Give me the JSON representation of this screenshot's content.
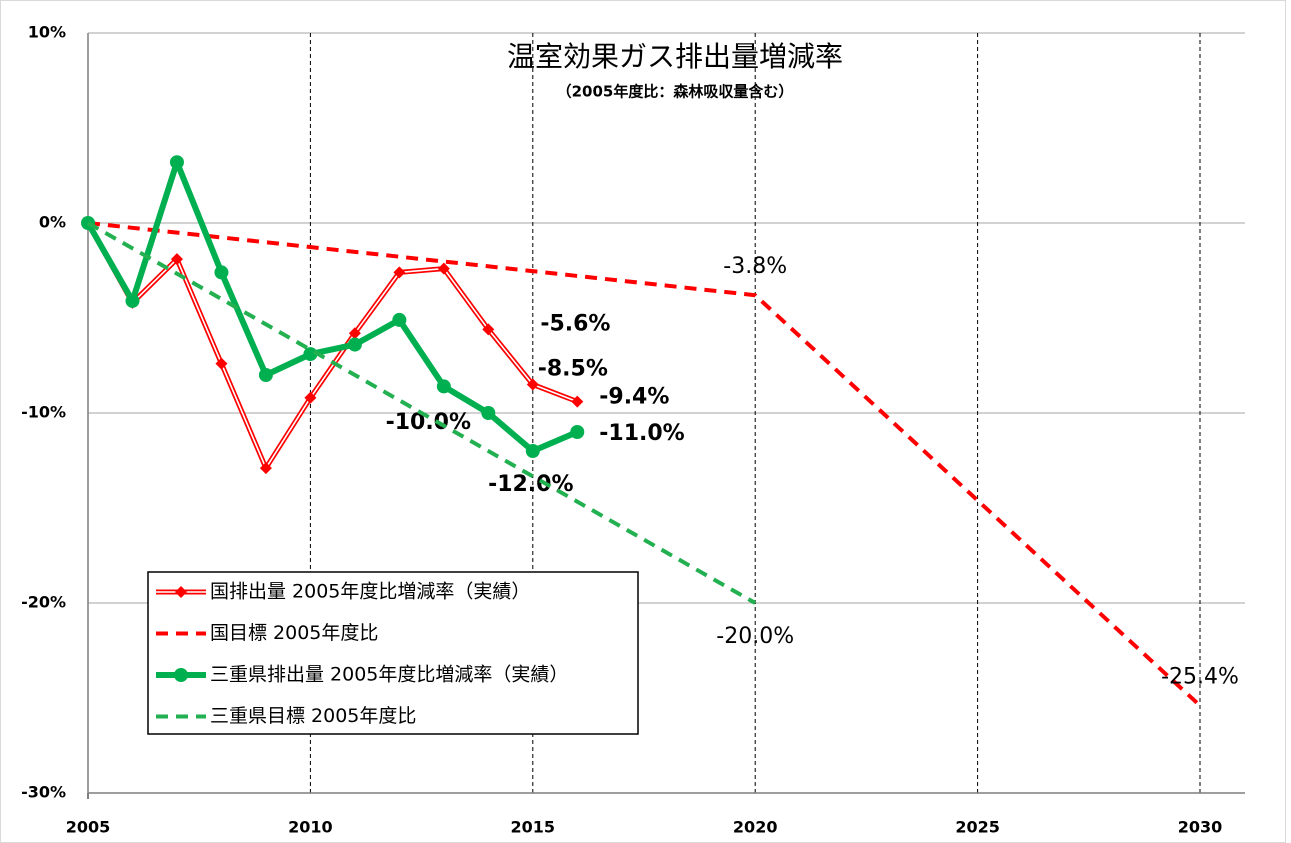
{
  "chart_data": {
    "type": "line",
    "title": "温室効果ガス排出量増減率",
    "subtitle": "（2005年度比：森林吸収量含む）",
    "xlim": [
      2005,
      2030
    ],
    "xticks": [
      2005,
      2010,
      2015,
      2020,
      2025,
      2030
    ],
    "ylim": [
      -30,
      10
    ],
    "yticks": [
      {
        "value": -30,
        "label": "-30%"
      },
      {
        "value": -20,
        "label": "-20%"
      },
      {
        "value": -10,
        "label": "-10%"
      },
      {
        "value": 0,
        "label": "0%"
      },
      {
        "value": 10,
        "label": "10%"
      }
    ],
    "grid": true,
    "legend": "lower left",
    "series": [
      {
        "name": "国排出量 2005年度比増減率（実績）",
        "color": "#ff0000",
        "line_style": "double",
        "marker": "diamond",
        "x": [
          2005,
          2006,
          2007,
          2008,
          2009,
          2010,
          2011,
          2012,
          2013,
          2014,
          2015,
          2016
        ],
        "values": [
          0,
          -4.2,
          -1.9,
          -7.4,
          -12.9,
          -9.2,
          -5.8,
          -2.6,
          -2.4,
          -5.6,
          -8.5,
          -9.4
        ],
        "value_labels": [
          null,
          null,
          null,
          null,
          null,
          null,
          null,
          null,
          null,
          "-5.6%",
          "-8.5%",
          "-9.4%"
        ]
      },
      {
        "name": "国目標 2005年度比",
        "color": "#ff0000",
        "line_style": "dashed",
        "marker": "none",
        "x": [
          2005,
          2020,
          2030
        ],
        "values": [
          0,
          -3.8,
          -25.4
        ],
        "value_labels": [
          null,
          "-3.8%",
          "-25.4%"
        ]
      },
      {
        "name": "三重県排出量 2005年度比増減率（実績）",
        "color": "#00b050",
        "line_style": "solid",
        "marker": "circle",
        "x": [
          2005,
          2006,
          2007,
          2008,
          2009,
          2010,
          2011,
          2012,
          2013,
          2014,
          2015,
          2016
        ],
        "values": [
          0,
          -4.1,
          3.2,
          -2.6,
          -8.0,
          -6.9,
          -6.4,
          -5.1,
          -8.6,
          -10.0,
          -12.0,
          -11.0
        ],
        "value_labels": [
          null,
          null,
          null,
          null,
          null,
          null,
          null,
          null,
          null,
          "-10.0%",
          "-12.0%",
          "-11.0%"
        ]
      },
      {
        "name": "三重県目標 2005年度比",
        "color": "#22b050",
        "line_style": "dashed",
        "marker": "none",
        "x": [
          2005,
          2020
        ],
        "values": [
          0,
          -20.0
        ],
        "value_labels": [
          null,
          "-20.0%"
        ]
      }
    ]
  }
}
